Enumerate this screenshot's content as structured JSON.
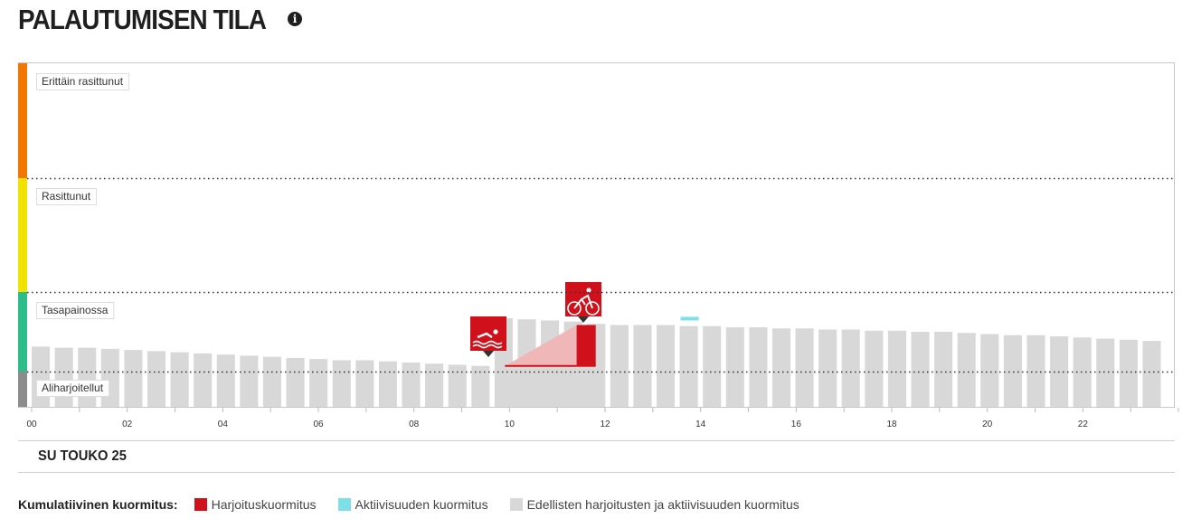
{
  "header": {
    "title": "PALAUTUMISEN TILA",
    "info_icon": "info-icon"
  },
  "date_label": "SU TOUKO 25",
  "legend": {
    "title": "Kumulatiivinen kuormitus:",
    "items": [
      {
        "label": "Harjoituskuormitus",
        "color": "#d0111b"
      },
      {
        "label": "Aktiivisuuden kuormitus",
        "color": "#7fdfe8"
      },
      {
        "label": "Edellisten harjoitusten ja aktiivisuuden kuormitus",
        "color": "#d8d8d8"
      }
    ]
  },
  "chart_data": {
    "type": "bar",
    "x_domain": [
      0,
      24
    ],
    "x_ticks": [
      "00",
      "02",
      "04",
      "06",
      "08",
      "10",
      "12",
      "14",
      "16",
      "18",
      "20",
      "22"
    ],
    "ylim": [
      0,
      4
    ],
    "grid": "dotted horizontal lines at zone boundaries",
    "zones": [
      {
        "label": "Aliharjoitellut",
        "from": 0,
        "to": 0.3,
        "color": "#8c8c8c"
      },
      {
        "label": "Tasapainossa",
        "from": 0.3,
        "to": 1.0,
        "color": "#2dbd8a"
      },
      {
        "label": "Rasittunut",
        "from": 1.0,
        "to": 2.0,
        "color": "#f2e200"
      },
      {
        "label": "Erittäin rasittunut",
        "from": 2.0,
        "to": 3.0,
        "color": "#f07800"
      }
    ],
    "series": [
      {
        "values": [
          0.52,
          0.51,
          0.51,
          0.5,
          0.49,
          0.48,
          0.47,
          0.46,
          0.45,
          0.44,
          0.43,
          0.42,
          0.41,
          0.4,
          0.4,
          0.39,
          0.38,
          0.37,
          0.36,
          0.35,
          0.77,
          0.76,
          0.75,
          0.74,
          0.72,
          0.71,
          0.71,
          0.71,
          0.7,
          0.7,
          0.69,
          0.69,
          0.68,
          0.68,
          0.67,
          0.67,
          0.66,
          0.66,
          0.65,
          0.65,
          0.64,
          0.63,
          0.62,
          0.62,
          0.61,
          0.6,
          0.59,
          0.58,
          0.57
        ],
        "color": "#d8d8d8"
      },
      {
        "points": [
          {
            "x": 9.75,
            "y": 0.37,
            "activity": "swimming-icon"
          },
          {
            "x": 11.3,
            "y": 0.7,
            "activity": "cycling-icon"
          }
        ],
        "fills": [
          {
            "from": 10.0,
            "to": 11.5,
            "y": 0.35,
            "color": "#f0b7b9"
          },
          {
            "from": 11.5,
            "to": 11.9,
            "y": 0.71,
            "color": "#d0111b"
          }
        ]
      },
      {
        "points": [
          {
            "x": 13.6,
            "y": 0.75,
            "h": 0.03,
            "color": "#7fdfe8"
          }
        ]
      }
    ]
  }
}
